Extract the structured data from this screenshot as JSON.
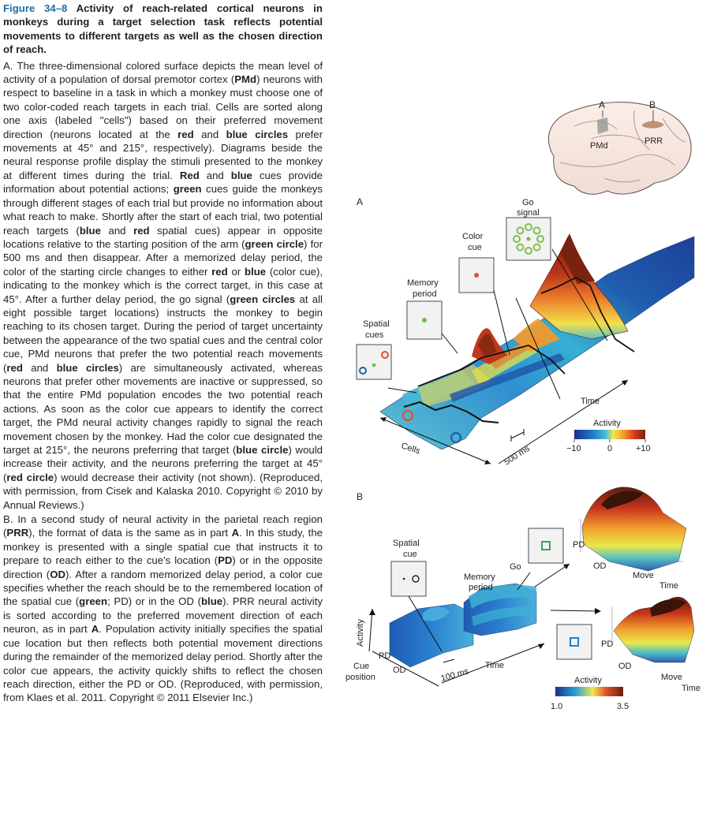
{
  "caption": {
    "figure_number": "Figure 34–8",
    "title": "Activity of reach-related cortical neurons in monkeys during a target selection task reflects potential movements to different targets as well as the chosen direction of reach.",
    "partA": [
      {
        "t": "A.",
        "b": false
      },
      {
        "t": " The three-dimensional colored surface depicts the mean level of activity of a population of dorsal premotor cortex (",
        "b": false
      },
      {
        "t": "PMd",
        "b": true
      },
      {
        "t": ") neurons with respect to baseline in a task in which a monkey must choose one of two color-coded reach targets in each trial. Cells are sorted along one axis (labeled \"cells\") based on their preferred movement direction (neurons located at the ",
        "b": false
      },
      {
        "t": "red",
        "b": true
      },
      {
        "t": " and ",
        "b": false
      },
      {
        "t": "blue circles",
        "b": true
      },
      {
        "t": " prefer movements at 45° and 215°, respectively). Diagrams beside the neural response profile display the stimuli presented to the monkey at different times during the trial. ",
        "b": false
      },
      {
        "t": "Red",
        "b": true
      },
      {
        "t": " and ",
        "b": false
      },
      {
        "t": "blue",
        "b": true
      },
      {
        "t": " cues provide information about potential actions; ",
        "b": false
      },
      {
        "t": "green",
        "b": true
      },
      {
        "t": " cues guide the monkeys through different stages of each trial but provide no information about what reach to make. Shortly after the start of each trial, two potential reach targets (",
        "b": false
      },
      {
        "t": "blue",
        "b": true
      },
      {
        "t": " and ",
        "b": false
      },
      {
        "t": "red",
        "b": true
      },
      {
        "t": " spatial cues) appear in opposite locations relative to the starting position of the arm (",
        "b": false
      },
      {
        "t": "green circle",
        "b": true
      },
      {
        "t": ") for 500 ms and then disappear. After a memorized delay period, the color of the starting circle changes to either ",
        "b": false
      },
      {
        "t": "red",
        "b": true
      },
      {
        "t": " or ",
        "b": false
      },
      {
        "t": "blue",
        "b": true
      },
      {
        "t": " (color cue), indicating to the monkey which is the correct target, in this case at 45°. After a further delay period, the go signal (",
        "b": false
      },
      {
        "t": "green circles",
        "b": true
      },
      {
        "t": " at all eight possible target locations) instructs the monkey to begin reaching to its chosen target. During the period of target uncertainty between the appearance of the two spatial cues and the central color cue, PMd neurons that prefer the two potential reach movements (",
        "b": false
      },
      {
        "t": "red",
        "b": true
      },
      {
        "t": " and ",
        "b": false
      },
      {
        "t": "blue circles",
        "b": true
      },
      {
        "t": ") are simultaneously activated, whereas neurons that prefer other movements are inactive or suppressed, so that the entire PMd population encodes the two potential reach actions. As soon as the color cue appears to identify the correct target, the PMd neural activity changes rapidly to signal the reach movement chosen by the monkey. Had the color cue designated the target at 215°, the neurons preferring that target (",
        "b": false
      },
      {
        "t": "blue circle",
        "b": true
      },
      {
        "t": ") would increase their activity, and the neurons preferring the target at 45° (",
        "b": false
      },
      {
        "t": "red circle",
        "b": true
      },
      {
        "t": ") would decrease their activity (not shown). (Reproduced, with permission, from Cisek and Kalaska 2010. Copyright © 2010 by Annual Reviews.)",
        "b": false
      }
    ],
    "partB": [
      {
        "t": "B.",
        "b": false
      },
      {
        "t": " In a second study of neural activity in the parietal reach region (",
        "b": false
      },
      {
        "t": "PRR",
        "b": true
      },
      {
        "t": "), the format of data is the same as in part ",
        "b": false
      },
      {
        "t": "A",
        "b": true
      },
      {
        "t": ". In this study, the monkey is presented with a single spatial cue that instructs it to prepare to reach either to the cue's location (",
        "b": false
      },
      {
        "t": "PD",
        "b": true
      },
      {
        "t": ") or in the opposite direction (",
        "b": false
      },
      {
        "t": "OD",
        "b": true
      },
      {
        "t": "). After a random memorized delay period, a color cue specifies whether the reach should be to the remembered location of the spatial cue (",
        "b": false
      },
      {
        "t": "green",
        "b": true
      },
      {
        "t": "; PD) or in the OD (",
        "b": false
      },
      {
        "t": "blue",
        "b": true
      },
      {
        "t": "). PRR neural activity is sorted according to the preferred movement direction of each neuron, as in part ",
        "b": false
      },
      {
        "t": "A",
        "b": true
      },
      {
        "t": ". Population activity initially specifies the spatial cue location but then reflects both potential movement directions during the remainder of the memorized delay period. Shortly after the color cue appears, the activity quickly shifts to reflect the chosen reach direction, either the PD or OD. (Reproduced, with permission, from Klaes et al. 2011. Copyright © 2011 Elsevier Inc.)",
        "b": false
      }
    ]
  },
  "brain": {
    "label_A": "A",
    "label_B": "B",
    "region_A": "PMd",
    "region_B": "PRR"
  },
  "panelA": {
    "panel_label": "A",
    "cue_spatial": "Spatial cues",
    "cue_memory": "Memory period",
    "cue_color": "Color cue",
    "cue_go": "Go signal",
    "axis_time": "Time",
    "axis_cells": "Cells",
    "scale_bar": "500 ms",
    "colorbar_title": "Activity",
    "colorbar_min": "−10",
    "colorbar_mid": "0",
    "colorbar_max": "+10"
  },
  "panelB": {
    "panel_label": "B",
    "cue_spatial": "Spatial cue",
    "memory": "Memory period",
    "go": "Go",
    "axis_activity": "Activity",
    "pd": "PD",
    "od": "OD",
    "cue_position": "Cue position",
    "scale_bar": "100 ms",
    "time": "Time",
    "move": "Move",
    "colorbar_title": "Activity",
    "colorbar_min": "1.0",
    "colorbar_max": "3.5"
  },
  "colors": {
    "figure_number": "#1a6fa8",
    "red_target": "#e0502a",
    "blue_target": "#1f5fa8",
    "green_cue": "#7cc04b",
    "peak": "#8a2a12"
  }
}
